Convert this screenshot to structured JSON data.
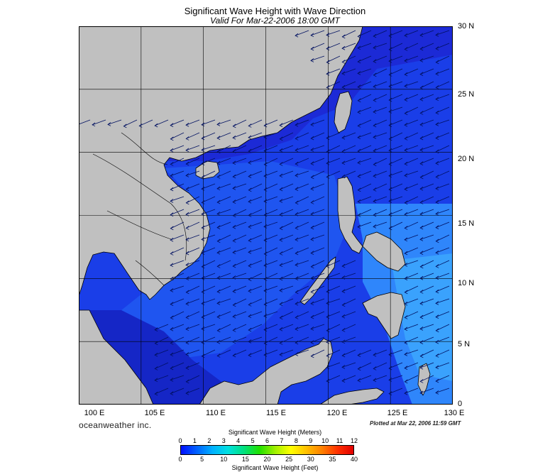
{
  "header": {
    "title": "Significant Wave Height with Wave Direction",
    "subtitle": "Valid For Mar-22-2006 18:00 GMT"
  },
  "map": {
    "lat_labels": [
      "30 N",
      "25 N",
      "20 N",
      "15 N",
      "10 N",
      "5 N",
      "0"
    ],
    "lon_labels": [
      "100 E",
      "105 E",
      "110 E",
      "115 E",
      "120 E",
      "125 E",
      "130 E"
    ],
    "lon_range": [
      100,
      130
    ],
    "lat_range": [
      0,
      30
    ],
    "grid_step_deg": 5,
    "land_color": "#c0c0c0",
    "arrow_direction": "toward west-southwest (north-east monsoon)"
  },
  "footer": {
    "brand": "oceanweather inc.",
    "plotted": "Plotted at Mar 22, 2006 11:59 GMT"
  },
  "colorbar": {
    "title_meters": "Significant Wave Height (Meters)",
    "title_feet": "Significant Wave Height (Feet)",
    "meters_ticks": [
      "0",
      "1",
      "2",
      "3",
      "4",
      "5",
      "6",
      "7",
      "8",
      "9",
      "10",
      "11",
      "12"
    ],
    "feet_ticks": [
      "0",
      "5",
      "10",
      "15",
      "20",
      "25",
      "30",
      "35",
      "40"
    ],
    "colors": [
      "#0010ff",
      "#0060ff",
      "#00b0ff",
      "#00e0e0",
      "#00e080",
      "#20e000",
      "#a0f000",
      "#ffff00",
      "#ffc000",
      "#ff8000",
      "#ff3000",
      "#e00000"
    ]
  }
}
